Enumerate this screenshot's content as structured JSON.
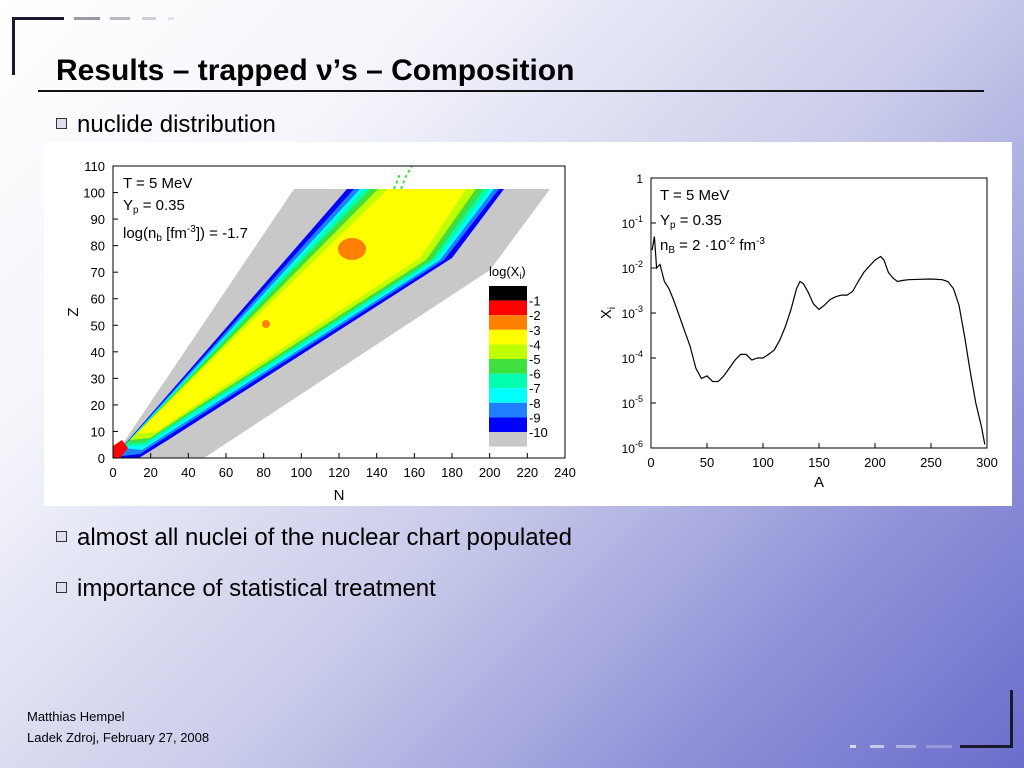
{
  "slide": {
    "title": "Results – trapped ν’s – Composition",
    "bullets": [
      "nuclide distribution",
      "almost all nuclei of the nuclear chart populated",
      "importance of statistical treatment"
    ],
    "footer_author": "Matthias Hempel",
    "footer_date": "Ladek Zdroj, February 27, 2008"
  },
  "chart_data": [
    {
      "type": "heatmap",
      "xlabel": "N",
      "ylabel": "Z",
      "xlim": [
        0,
        240
      ],
      "ylim": [
        0,
        110
      ],
      "xticks": [
        0,
        20,
        40,
        60,
        80,
        100,
        120,
        140,
        160,
        180,
        200,
        220,
        240
      ],
      "yticks": [
        0,
        10,
        20,
        30,
        40,
        50,
        60,
        70,
        80,
        90,
        100,
        110
      ],
      "annotation_lines": [
        "T = 5 MeV",
        "Y",
        "p",
        " = 0.35",
        "log(n",
        "b",
        " [fm",
        "-3",
        "]) = -1.7"
      ],
      "legend_title": "log(X",
      "legend_title_sub": "i",
      "legend_title_end": ")",
      "legend_labels": [
        "-1",
        "-2",
        "-3",
        "-4",
        "-5",
        "-6",
        "-7",
        "-8",
        "-9",
        "-10"
      ],
      "legend_colors": [
        "#000000",
        "#ff0000",
        "#ff7f00",
        "#ffff00",
        "#bfff00",
        "#3fdf3f",
        "#00ffaf",
        "#00ffff",
        "#1f7fff",
        "#0000ff",
        "#c8c8c8"
      ]
    },
    {
      "type": "line",
      "xlabel": "A",
      "ylabel": "X",
      "ylabel_sub": "i",
      "xlim": [
        0,
        300
      ],
      "ylim": [
        1e-06,
        1
      ],
      "yscale": "log",
      "xticks": [
        0,
        50,
        100,
        150,
        200,
        250,
        300
      ],
      "ytick_bases": [
        "1",
        "10",
        "10",
        "10",
        "10",
        "10",
        "10"
      ],
      "ytick_exps": [
        "",
        "-1",
        "-2",
        "-3",
        "-4",
        "-5",
        "-6"
      ],
      "annotation": {
        "l1": "T = 5 MeV",
        "l2a": "Y",
        "l2b": "p",
        "l2c": " = 0.35",
        "l3a": "n",
        "l3b": "B",
        "l3c": " = 2 ·10",
        "l3d": "-2",
        "l3e": " fm",
        "l3f": "-3"
      },
      "x": [
        1,
        3,
        5,
        8,
        12,
        16,
        20,
        25,
        30,
        35,
        40,
        45,
        50,
        55,
        60,
        65,
        70,
        75,
        80,
        85,
        90,
        95,
        100,
        105,
        110,
        115,
        120,
        125,
        130,
        133,
        136,
        140,
        145,
        150,
        155,
        160,
        165,
        170,
        175,
        180,
        185,
        190,
        195,
        200,
        205,
        208,
        212,
        216,
        220,
        225,
        230,
        240,
        250,
        260,
        265,
        270,
        275,
        280,
        285,
        290,
        295,
        298
      ],
      "y": [
        0.025,
        0.05,
        0.01,
        0.012,
        0.005,
        0.0035,
        0.002,
        0.0009,
        0.0004,
        0.00018,
        6e-05,
        3.5e-05,
        4e-05,
        3e-05,
        3e-05,
        4e-05,
        6e-05,
        9e-05,
        0.00012,
        0.00012,
        9e-05,
        0.0001,
        0.0001,
        0.00012,
        0.00015,
        0.00025,
        0.0005,
        0.0012,
        0.0035,
        0.005,
        0.0045,
        0.003,
        0.0016,
        0.0012,
        0.0015,
        0.002,
        0.0023,
        0.0025,
        0.0025,
        0.003,
        0.005,
        0.008,
        0.011,
        0.015,
        0.018,
        0.015,
        0.008,
        0.006,
        0.005,
        0.0053,
        0.0055,
        0.0056,
        0.0057,
        0.0055,
        0.005,
        0.0035,
        0.0015,
        0.0003,
        5e-05,
        1e-05,
        3e-06,
        1.2e-06
      ]
    }
  ]
}
